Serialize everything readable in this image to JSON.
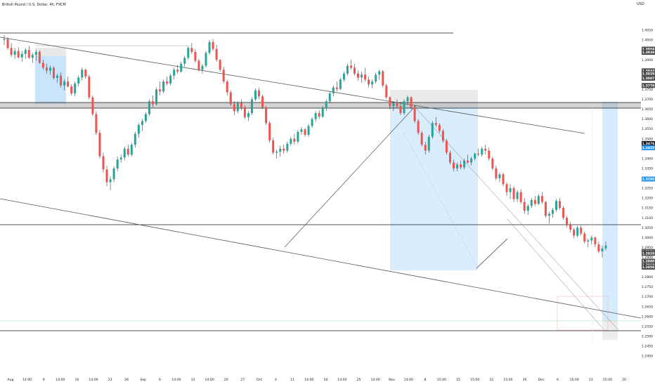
{
  "header": {
    "title": "British Pound / U.S. Dollar, 4h, FXCM",
    "currency": "USD"
  },
  "chart_data": {
    "type": "candlestick",
    "title": "British Pound / U.S. Dollar, 4h, FXCM",
    "y_unit": "USD",
    "ylim": [
      1.238,
      1.421
    ],
    "grid": false,
    "y_ticks": [
      "1.4050",
      "1.4000",
      "1.3950",
      "1.3900",
      "1.3850",
      "1.3800",
      "1.3750",
      "1.3700",
      "1.3650",
      "1.3600",
      "1.3550",
      "1.3500",
      "1.3450",
      "1.3400",
      "1.3350",
      "1.3300",
      "1.3250",
      "1.3200",
      "1.3150",
      "1.3100",
      "1.3050",
      "1.3000",
      "1.2950",
      "1.2900",
      "1.2850",
      "1.2800",
      "1.2750",
      "1.2700",
      "1.2650",
      "1.2600",
      "1.2550",
      "1.2500",
      "1.2450",
      "1.2400"
    ],
    "x_ticks": [
      "Aug",
      "14:00",
      "9",
      "14:00",
      "16",
      "14:00",
      "23",
      "26",
      "Sep",
      "6",
      "14:00",
      "13",
      "14:00",
      "20",
      "27",
      "Oct",
      "4",
      "11",
      "14:00",
      "18",
      "14:00",
      "25",
      "14:00",
      "Nov",
      "14:00",
      "8",
      "15:00",
      "15",
      "15:00",
      "22",
      "15:00",
      "29",
      "Dec",
      "6",
      "15:00",
      "13",
      "15:00",
      "20"
    ],
    "candles_ohlc": [
      [
        1.4,
        1.4025,
        1.3975,
        1.4005
      ],
      [
        1.4005,
        1.4015,
        1.395,
        1.396
      ],
      [
        1.396,
        1.3985,
        1.3915,
        1.3925
      ],
      [
        1.3925,
        1.396,
        1.3905,
        1.3945
      ],
      [
        1.3945,
        1.3965,
        1.3905,
        1.3912
      ],
      [
        1.3912,
        1.3945,
        1.389,
        1.393
      ],
      [
        1.393,
        1.396,
        1.3905,
        1.395
      ],
      [
        1.395,
        1.397,
        1.3905,
        1.391
      ],
      [
        1.391,
        1.3935,
        1.3885,
        1.3925
      ],
      [
        1.3925,
        1.395,
        1.3895,
        1.394
      ],
      [
        1.394,
        1.3948,
        1.388,
        1.3885
      ],
      [
        1.3885,
        1.39,
        1.385,
        1.386
      ],
      [
        1.386,
        1.388,
        1.383,
        1.3845
      ],
      [
        1.3845,
        1.387,
        1.3825,
        1.386
      ],
      [
        1.386,
        1.3866,
        1.38,
        1.3808
      ],
      [
        1.3808,
        1.383,
        1.3785,
        1.382
      ],
      [
        1.382,
        1.3835,
        1.376,
        1.377
      ],
      [
        1.377,
        1.38,
        1.3745,
        1.379
      ],
      [
        1.379,
        1.3815,
        1.376,
        1.3765
      ],
      [
        1.3765,
        1.3775,
        1.372,
        1.373
      ],
      [
        1.373,
        1.379,
        1.3715,
        1.378
      ],
      [
        1.378,
        1.382,
        1.3765,
        1.381
      ],
      [
        1.381,
        1.386,
        1.3795,
        1.385
      ],
      [
        1.385,
        1.3855,
        1.3805,
        1.3815
      ],
      [
        1.3815,
        1.3825,
        1.37,
        1.371
      ],
      [
        1.371,
        1.372,
        1.3615,
        1.3625
      ],
      [
        1.3625,
        1.364,
        1.352,
        1.353
      ],
      [
        1.353,
        1.3545,
        1.34,
        1.3412
      ],
      [
        1.3412,
        1.343,
        1.333,
        1.3345
      ],
      [
        1.3345,
        1.3365,
        1.326,
        1.328
      ],
      [
        1.328,
        1.331,
        1.324,
        1.3295
      ],
      [
        1.3295,
        1.336,
        1.328,
        1.335
      ],
      [
        1.335,
        1.341,
        1.3335,
        1.3395
      ],
      [
        1.3395,
        1.342,
        1.338,
        1.3405
      ],
      [
        1.3405,
        1.346,
        1.339,
        1.345
      ],
      [
        1.345,
        1.347,
        1.341,
        1.342
      ],
      [
        1.342,
        1.348,
        1.341,
        1.347
      ],
      [
        1.347,
        1.3535,
        1.3455,
        1.3525
      ],
      [
        1.3525,
        1.358,
        1.3505,
        1.357
      ],
      [
        1.357,
        1.36,
        1.354,
        1.359
      ],
      [
        1.359,
        1.3635,
        1.358,
        1.3625
      ],
      [
        1.3625,
        1.37,
        1.3615,
        1.369
      ],
      [
        1.369,
        1.372,
        1.366,
        1.3675
      ],
      [
        1.3675,
        1.376,
        1.367,
        1.375
      ],
      [
        1.375,
        1.379,
        1.372,
        1.374
      ],
      [
        1.374,
        1.38,
        1.373,
        1.379
      ],
      [
        1.379,
        1.3815,
        1.377,
        1.378
      ],
      [
        1.378,
        1.383,
        1.377,
        1.382
      ],
      [
        1.382,
        1.386,
        1.38,
        1.385
      ],
      [
        1.385,
        1.3875,
        1.383,
        1.384
      ],
      [
        1.384,
        1.389,
        1.3835,
        1.388
      ],
      [
        1.388,
        1.392,
        1.3865,
        1.391
      ],
      [
        1.391,
        1.397,
        1.39,
        1.396
      ],
      [
        1.396,
        1.3985,
        1.393,
        1.394
      ],
      [
        1.394,
        1.3955,
        1.3885,
        1.3895
      ],
      [
        1.3895,
        1.3905,
        1.384,
        1.385
      ],
      [
        1.385,
        1.388,
        1.383,
        1.387
      ],
      [
        1.387,
        1.3945,
        1.386,
        1.3935
      ],
      [
        1.3935,
        1.4,
        1.3925,
        1.399
      ],
      [
        1.399,
        1.4005,
        1.3945,
        1.3955
      ],
      [
        1.3955,
        1.3975,
        1.389,
        1.39
      ],
      [
        1.39,
        1.3905,
        1.384,
        1.385
      ],
      [
        1.385,
        1.3865,
        1.378,
        1.379
      ],
      [
        1.379,
        1.38,
        1.372,
        1.3735
      ],
      [
        1.3735,
        1.3745,
        1.3665,
        1.3675
      ],
      [
        1.3675,
        1.369,
        1.362,
        1.364
      ],
      [
        1.364,
        1.369,
        1.363,
        1.368
      ],
      [
        1.368,
        1.37,
        1.3645,
        1.366
      ],
      [
        1.366,
        1.367,
        1.36,
        1.361
      ],
      [
        1.361,
        1.364,
        1.359,
        1.363
      ],
      [
        1.363,
        1.371,
        1.362,
        1.37
      ],
      [
        1.37,
        1.3755,
        1.369,
        1.3745
      ],
      [
        1.3745,
        1.376,
        1.37,
        1.3715
      ],
      [
        1.3715,
        1.3725,
        1.365,
        1.366
      ],
      [
        1.366,
        1.3665,
        1.357,
        1.358
      ],
      [
        1.358,
        1.359,
        1.348,
        1.3492
      ],
      [
        1.3492,
        1.3505,
        1.342,
        1.343
      ],
      [
        1.343,
        1.3445,
        1.34,
        1.3435
      ],
      [
        1.3435,
        1.3465,
        1.341,
        1.345
      ],
      [
        1.345,
        1.347,
        1.3425,
        1.344
      ],
      [
        1.344,
        1.3485,
        1.343,
        1.3475
      ],
      [
        1.3475,
        1.351,
        1.3465,
        1.35
      ],
      [
        1.35,
        1.3525,
        1.347,
        1.3485
      ],
      [
        1.3485,
        1.3545,
        1.3475,
        1.3535
      ],
      [
        1.3535,
        1.356,
        1.352,
        1.3548
      ],
      [
        1.3548,
        1.3555,
        1.351,
        1.352
      ],
      [
        1.352,
        1.3575,
        1.351,
        1.3565
      ],
      [
        1.3565,
        1.361,
        1.3555,
        1.36
      ],
      [
        1.36,
        1.364,
        1.3585,
        1.363
      ],
      [
        1.363,
        1.3645,
        1.36,
        1.3612
      ],
      [
        1.3612,
        1.3665,
        1.3605,
        1.3655
      ],
      [
        1.3655,
        1.37,
        1.364,
        1.369
      ],
      [
        1.369,
        1.374,
        1.368,
        1.373
      ],
      [
        1.373,
        1.377,
        1.3715,
        1.376
      ],
      [
        1.376,
        1.379,
        1.374,
        1.3752
      ],
      [
        1.3752,
        1.381,
        1.3745,
        1.38
      ],
      [
        1.38,
        1.384,
        1.379,
        1.383
      ],
      [
        1.383,
        1.388,
        1.382,
        1.387
      ],
      [
        1.387,
        1.39,
        1.385,
        1.386
      ],
      [
        1.386,
        1.388,
        1.382,
        1.383
      ],
      [
        1.383,
        1.3845,
        1.3795,
        1.381
      ],
      [
        1.381,
        1.384,
        1.3785,
        1.3825
      ],
      [
        1.3825,
        1.386,
        1.379,
        1.38
      ],
      [
        1.38,
        1.3815,
        1.376,
        1.3775
      ],
      [
        1.3775,
        1.38,
        1.3755,
        1.379
      ],
      [
        1.379,
        1.3835,
        1.378,
        1.3825
      ],
      [
        1.3825,
        1.385,
        1.38,
        1.3842
      ],
      [
        1.3842,
        1.3848,
        1.376,
        1.377
      ],
      [
        1.377,
        1.378,
        1.37,
        1.371
      ],
      [
        1.371,
        1.3715,
        1.365,
        1.3665
      ],
      [
        1.3665,
        1.369,
        1.364,
        1.368
      ],
      [
        1.368,
        1.37,
        1.3655,
        1.3665
      ],
      [
        1.3665,
        1.368,
        1.362,
        1.363
      ],
      [
        1.363,
        1.37,
        1.362,
        1.369
      ],
      [
        1.369,
        1.372,
        1.3675,
        1.371
      ],
      [
        1.371,
        1.3715,
        1.365,
        1.366
      ],
      [
        1.366,
        1.367,
        1.358,
        1.359
      ],
      [
        1.359,
        1.36,
        1.352,
        1.353
      ],
      [
        1.353,
        1.354,
        1.346,
        1.347
      ],
      [
        1.347,
        1.3485,
        1.342,
        1.344
      ],
      [
        1.344,
        1.352,
        1.343,
        1.351
      ],
      [
        1.351,
        1.359,
        1.35,
        1.358
      ],
      [
        1.358,
        1.361,
        1.356,
        1.357
      ],
      [
        1.357,
        1.358,
        1.353,
        1.354
      ],
      [
        1.354,
        1.355,
        1.348,
        1.349
      ],
      [
        1.349,
        1.35,
        1.342,
        1.343
      ],
      [
        1.343,
        1.344,
        1.337,
        1.338
      ],
      [
        1.338,
        1.3395,
        1.3335,
        1.335
      ],
      [
        1.335,
        1.338,
        1.3335,
        1.337
      ],
      [
        1.337,
        1.339,
        1.3345,
        1.3355
      ],
      [
        1.3355,
        1.34,
        1.3345,
        1.339
      ],
      [
        1.339,
        1.342,
        1.3375,
        1.338
      ],
      [
        1.338,
        1.341,
        1.3365,
        1.34
      ],
      [
        1.34,
        1.343,
        1.339,
        1.3425
      ],
      [
        1.3425,
        1.345,
        1.341,
        1.342
      ],
      [
        1.342,
        1.346,
        1.341,
        1.345
      ],
      [
        1.345,
        1.347,
        1.342,
        1.344
      ],
      [
        1.344,
        1.3455,
        1.339,
        1.34
      ],
      [
        1.34,
        1.341,
        1.334,
        1.335
      ],
      [
        1.335,
        1.3365,
        1.329,
        1.33
      ],
      [
        1.33,
        1.333,
        1.328,
        1.332
      ],
      [
        1.332,
        1.333,
        1.326,
        1.327
      ],
      [
        1.327,
        1.328,
        1.321,
        1.323
      ],
      [
        1.323,
        1.327,
        1.3195,
        1.325
      ],
      [
        1.325,
        1.326,
        1.318,
        1.3195
      ],
      [
        1.3195,
        1.324,
        1.318,
        1.323
      ],
      [
        1.323,
        1.3245,
        1.317,
        1.318
      ],
      [
        1.318,
        1.32,
        1.312,
        1.3135
      ],
      [
        1.3135,
        1.317,
        1.3115,
        1.316
      ],
      [
        1.316,
        1.32,
        1.315,
        1.319
      ],
      [
        1.319,
        1.321,
        1.316,
        1.317
      ],
      [
        1.317,
        1.322,
        1.3165,
        1.321
      ],
      [
        1.321,
        1.323,
        1.317,
        1.318
      ],
      [
        1.318,
        1.3185,
        1.31,
        1.311
      ],
      [
        1.311,
        1.313,
        1.307,
        1.312
      ],
      [
        1.312,
        1.315,
        1.31,
        1.314
      ],
      [
        1.314,
        1.3195,
        1.313,
        1.3185
      ],
      [
        1.3185,
        1.32,
        1.314,
        1.315
      ],
      [
        1.315,
        1.316,
        1.309,
        1.31
      ],
      [
        1.31,
        1.311,
        1.305,
        1.3065
      ],
      [
        1.3065,
        1.308,
        1.3025,
        1.304
      ],
      [
        1.304,
        1.305,
        1.2995,
        1.301
      ],
      [
        1.301,
        1.306,
        1.3,
        1.305
      ],
      [
        1.305,
        1.306,
        1.301,
        1.302
      ],
      [
        1.302,
        1.303,
        1.297,
        1.298
      ],
      [
        1.298,
        1.2995,
        1.295,
        1.2985
      ],
      [
        1.2985,
        1.301,
        1.2965,
        1.3
      ],
      [
        1.3,
        1.3005,
        1.295,
        1.2965
      ],
      [
        1.2965,
        1.298,
        1.292,
        1.293
      ],
      [
        1.293,
        1.296,
        1.29,
        1.2945
      ],
      [
        1.2945,
        1.298,
        1.2935,
        1.296
      ]
    ],
    "tagged_prices": [
      {
        "value": "1.3954",
        "color": "#4a4a4a"
      },
      {
        "value": "1.3938",
        "color": "#4a4a4a"
      },
      {
        "value": "1.3844",
        "color": "#4a4a4a"
      },
      {
        "value": "1.3829",
        "color": "#4a4a4a"
      },
      {
        "value": "1.3807",
        "color": "#4a4a4a"
      },
      {
        "value": "1.3770",
        "color": "#4a4a4a"
      },
      {
        "value": "1.3476",
        "color": "#131722"
      },
      {
        "value": "1.3455",
        "color": "#2196f3"
      },
      {
        "value": "1.3296",
        "color": "#2196f3"
      },
      {
        "value": "1.2929",
        "color": "#4a4a4a"
      },
      {
        "value": "1.2920",
        "color": "#4a4a4a"
      },
      {
        "value": "1.2880",
        "color": "#4a4a4a"
      },
      {
        "value": "1.2860",
        "color": "#4a4a4a"
      },
      {
        "value": "1.2850",
        "color": "#4a4a4a"
      }
    ],
    "colors": {
      "bull": "#26a69a",
      "bear": "#ef5350",
      "wick": "#131722",
      "zone_blue": "#bbdefb",
      "zone_gray": "#e9e9e9"
    }
  }
}
